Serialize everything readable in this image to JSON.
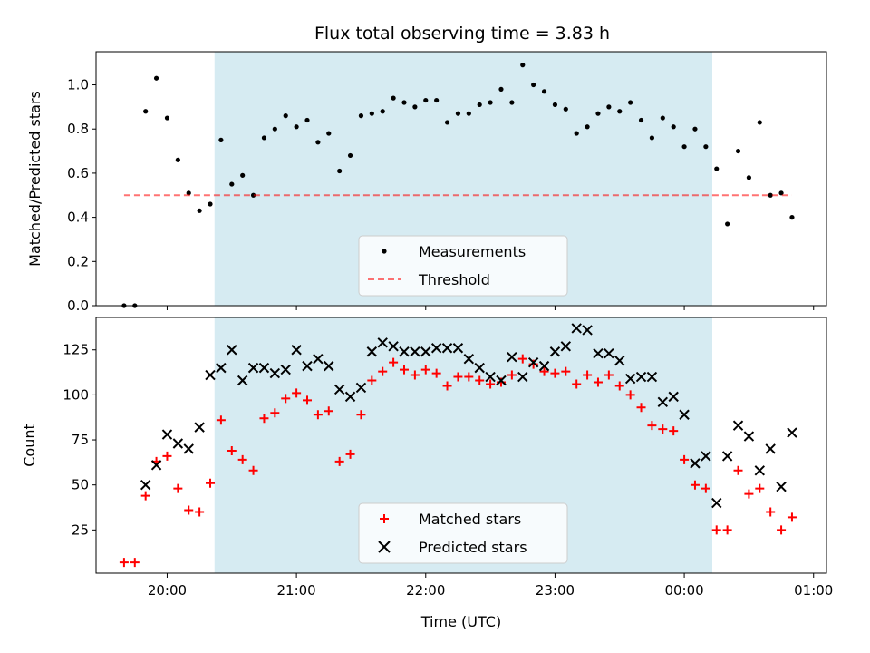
{
  "colors": {
    "shade": "#add8e6",
    "measurement": "#000000",
    "threshold": "#ff0000",
    "matched": "#ff0000",
    "predicted": "#000000",
    "axes": "#000000",
    "legend_border": "#cccccc"
  },
  "chart_data": [
    {
      "type": "scatter",
      "title": "Flux total observing time = 3.83 h",
      "ylabel": "Matched/Predicted stars",
      "xlabel": "",
      "x_unit": "UTC time",
      "xlim": [
        "19:27",
        "01:06"
      ],
      "ylim": [
        0,
        1.15
      ],
      "y_ticks": [
        "0.0",
        "0.2",
        "0.4",
        "0.6",
        "0.8",
        "1.0"
      ],
      "grid": false,
      "legend_placement": "lower center",
      "shaded_region": {
        "from": "20:22",
        "to": "00:13",
        "color": "#add8e6"
      },
      "series": [
        {
          "name": "Measurements",
          "kind": "scatter",
          "color": "#000000",
          "x": [
            "19:40",
            "19:45",
            "19:50",
            "19:55",
            "20:00",
            "20:05",
            "20:10",
            "20:15",
            "20:20",
            "20:25",
            "20:30",
            "20:35",
            "20:40",
            "20:45",
            "20:50",
            "20:55",
            "21:00",
            "21:05",
            "21:10",
            "21:15",
            "21:20",
            "21:25",
            "21:30",
            "21:35",
            "21:40",
            "21:45",
            "21:50",
            "21:55",
            "22:00",
            "22:05",
            "22:10",
            "22:15",
            "22:20",
            "22:25",
            "22:30",
            "22:35",
            "22:40",
            "22:45",
            "22:50",
            "22:55",
            "23:00",
            "23:05",
            "23:10",
            "23:15",
            "23:20",
            "23:25",
            "23:30",
            "23:35",
            "23:40",
            "23:45",
            "23:50",
            "23:55",
            "00:00",
            "00:05",
            "00:10",
            "00:15",
            "00:20",
            "00:25",
            "00:30",
            "00:35",
            "00:40",
            "00:45",
            "00:50"
          ],
          "y": [
            0.0,
            0.0,
            0.88,
            1.03,
            0.85,
            0.66,
            0.51,
            0.43,
            0.46,
            0.75,
            0.55,
            0.59,
            0.5,
            0.76,
            0.8,
            0.86,
            0.81,
            0.84,
            0.74,
            0.78,
            0.61,
            0.68,
            0.86,
            0.87,
            0.88,
            0.94,
            0.92,
            0.9,
            0.93,
            0.93,
            0.83,
            0.87,
            0.87,
            0.91,
            0.92,
            0.98,
            0.92,
            1.09,
            1.0,
            0.97,
            0.91,
            0.89,
            0.78,
            0.81,
            0.87,
            0.9,
            0.88,
            0.92,
            0.84,
            0.76,
            0.85,
            0.81,
            0.72,
            0.8,
            0.72,
            0.62,
            0.37,
            0.7,
            0.58,
            0.83,
            0.5,
            0.51,
            0.4
          ]
        },
        {
          "name": "Threshold",
          "kind": "line",
          "style": "dashed",
          "color": "#ff0000",
          "x": [
            "19:40",
            "00:50"
          ],
          "y": [
            0.5,
            0.5
          ]
        }
      ]
    },
    {
      "type": "scatter",
      "title": "",
      "ylabel": "Count",
      "xlabel": "Time (UTC)",
      "x_unit": "UTC time",
      "xlim": [
        "19:27",
        "01:06"
      ],
      "ylim": [
        1,
        143
      ],
      "y_ticks": [
        "25",
        "50",
        "75",
        "100",
        "125"
      ],
      "x_ticks": [
        "20:00",
        "21:00",
        "22:00",
        "23:00",
        "00:00",
        "01:00"
      ],
      "grid": false,
      "legend_placement": "lower center",
      "shaded_region": {
        "from": "20:22",
        "to": "00:13",
        "color": "#add8e6"
      },
      "series": [
        {
          "name": "Matched stars",
          "kind": "scatter",
          "marker": "plus",
          "color": "#ff0000",
          "x": [
            "19:40",
            "19:45",
            "19:50",
            "19:55",
            "20:00",
            "20:05",
            "20:10",
            "20:15",
            "20:20",
            "20:25",
            "20:30",
            "20:35",
            "20:40",
            "20:45",
            "20:50",
            "20:55",
            "21:00",
            "21:05",
            "21:10",
            "21:15",
            "21:20",
            "21:25",
            "21:30",
            "21:35",
            "21:40",
            "21:45",
            "21:50",
            "21:55",
            "22:00",
            "22:05",
            "22:10",
            "22:15",
            "22:20",
            "22:25",
            "22:30",
            "22:35",
            "22:40",
            "22:45",
            "22:50",
            "22:55",
            "23:00",
            "23:05",
            "23:10",
            "23:15",
            "23:20",
            "23:25",
            "23:30",
            "23:35",
            "23:40",
            "23:45",
            "23:50",
            "23:55",
            "00:00",
            "00:05",
            "00:10",
            "00:15",
            "00:20",
            "00:25",
            "00:30",
            "00:35",
            "00:40",
            "00:45",
            "00:50"
          ],
          "y": [
            7,
            7,
            44,
            63,
            66,
            48,
            36,
            35,
            51,
            86,
            69,
            64,
            58,
            87,
            90,
            98,
            101,
            97,
            89,
            91,
            63,
            67,
            89,
            108,
            113,
            118,
            114,
            111,
            114,
            112,
            105,
            110,
            110,
            108,
            106,
            107,
            111,
            120,
            117,
            113,
            112,
            113,
            106,
            111,
            107,
            111,
            105,
            100,
            93,
            83,
            81,
            80,
            64,
            50,
            48,
            25,
            25,
            58,
            45,
            48,
            35,
            25,
            32
          ]
        },
        {
          "name": "Predicted stars",
          "kind": "scatter",
          "marker": "x",
          "color": "#000000",
          "x": [
            "19:50",
            "19:55",
            "20:00",
            "20:05",
            "20:10",
            "20:15",
            "20:20",
            "20:25",
            "20:30",
            "20:35",
            "20:40",
            "20:45",
            "20:50",
            "20:55",
            "21:00",
            "21:05",
            "21:10",
            "21:15",
            "21:20",
            "21:25",
            "21:30",
            "21:35",
            "21:40",
            "21:45",
            "21:50",
            "21:55",
            "22:00",
            "22:05",
            "22:10",
            "22:15",
            "22:20",
            "22:25",
            "22:30",
            "22:35",
            "22:40",
            "22:45",
            "22:50",
            "22:55",
            "23:00",
            "23:05",
            "23:10",
            "23:15",
            "23:20",
            "23:25",
            "23:30",
            "23:35",
            "23:40",
            "23:45",
            "23:50",
            "23:55",
            "00:00",
            "00:05",
            "00:10",
            "00:15",
            "00:20",
            "00:25",
            "00:30",
            "00:35",
            "00:40",
            "00:45",
            "00:50"
          ],
          "y": [
            50,
            61,
            78,
            73,
            70,
            82,
            111,
            115,
            125,
            108,
            115,
            115,
            112,
            114,
            125,
            116,
            120,
            116,
            103,
            99,
            104,
            124,
            129,
            127,
            124,
            124,
            124,
            126,
            126,
            126,
            120,
            115,
            110,
            108,
            121,
            110,
            118,
            116,
            124,
            127,
            137,
            136,
            123,
            123,
            119,
            109,
            110,
            110,
            96,
            99,
            89,
            62,
            66,
            40,
            66,
            83,
            77,
            58,
            70,
            49,
            79
          ]
        }
      ]
    }
  ]
}
